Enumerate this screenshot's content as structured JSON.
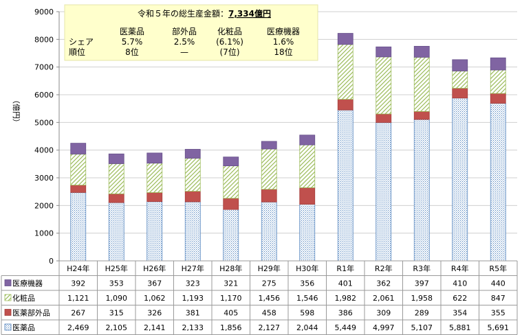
{
  "chart_data": {
    "type": "bar",
    "stacked": true,
    "title": "令和５年の総生産金額：",
    "title_value": "7,334億円",
    "ylabel": "（億円）",
    "ylim": [
      0,
      9000
    ],
    "yticks": [
      "0",
      "1000",
      "2000",
      "3000",
      "4000",
      "5000",
      "6000",
      "7000",
      "8000",
      "9000"
    ],
    "categories": [
      "H24年",
      "H25年",
      "H26年",
      "H27年",
      "H28年",
      "H29年",
      "H30年",
      "R1年",
      "R2年",
      "R3年",
      "R4年",
      "R5年"
    ],
    "series": [
      {
        "name": "医薬品",
        "key": "drug",
        "color": "#4f81bd",
        "values": [
          2469,
          2105,
          2141,
          2133,
          1856,
          2127,
          2044,
          5449,
          4997,
          5107,
          5881,
          5691
        ],
        "labels": [
          "2,469",
          "2,105",
          "2,141",
          "2,133",
          "1,856",
          "2,127",
          "2,044",
          "5,449",
          "4,997",
          "5,107",
          "5,881",
          "5,691"
        ]
      },
      {
        "name": "医薬部外品",
        "key": "quasi",
        "color": "#c0504d",
        "values": [
          267,
          315,
          326,
          381,
          405,
          458,
          598,
          386,
          309,
          289,
          354,
          355
        ],
        "labels": [
          "267",
          "315",
          "326",
          "381",
          "405",
          "458",
          "598",
          "386",
          "309",
          "289",
          "354",
          "355"
        ]
      },
      {
        "name": "化粧品",
        "key": "cosm",
        "color": "#9bbb59",
        "values": [
          1121,
          1090,
          1062,
          1193,
          1170,
          1456,
          1546,
          1982,
          2061,
          1958,
          622,
          847
        ],
        "labels": [
          "1,121",
          "1,090",
          "1,062",
          "1,193",
          "1,170",
          "1,456",
          "1,546",
          "1,982",
          "2,061",
          "1,958",
          "622",
          "847"
        ]
      },
      {
        "name": "医療機器",
        "key": "device",
        "color": "#8064a2",
        "values": [
          392,
          353,
          367,
          323,
          321,
          275,
          356,
          401,
          362,
          397,
          410,
          440
        ],
        "labels": [
          "392",
          "353",
          "367",
          "323",
          "321",
          "275",
          "356",
          "401",
          "362",
          "397",
          "410",
          "440"
        ]
      }
    ],
    "table_order": [
      "device",
      "cosm",
      "quasi",
      "drug"
    ],
    "info_box": {
      "columns": [
        "医薬品",
        "部外品",
        "化粧品",
        "医療機器"
      ],
      "share_label": "シェア",
      "share": [
        "5.7%",
        "2.5%",
        "(6.1%)",
        "1.6%"
      ],
      "rank_label": "順位",
      "rank": [
        "8位",
        "—",
        "(7位)",
        "18位"
      ]
    }
  }
}
